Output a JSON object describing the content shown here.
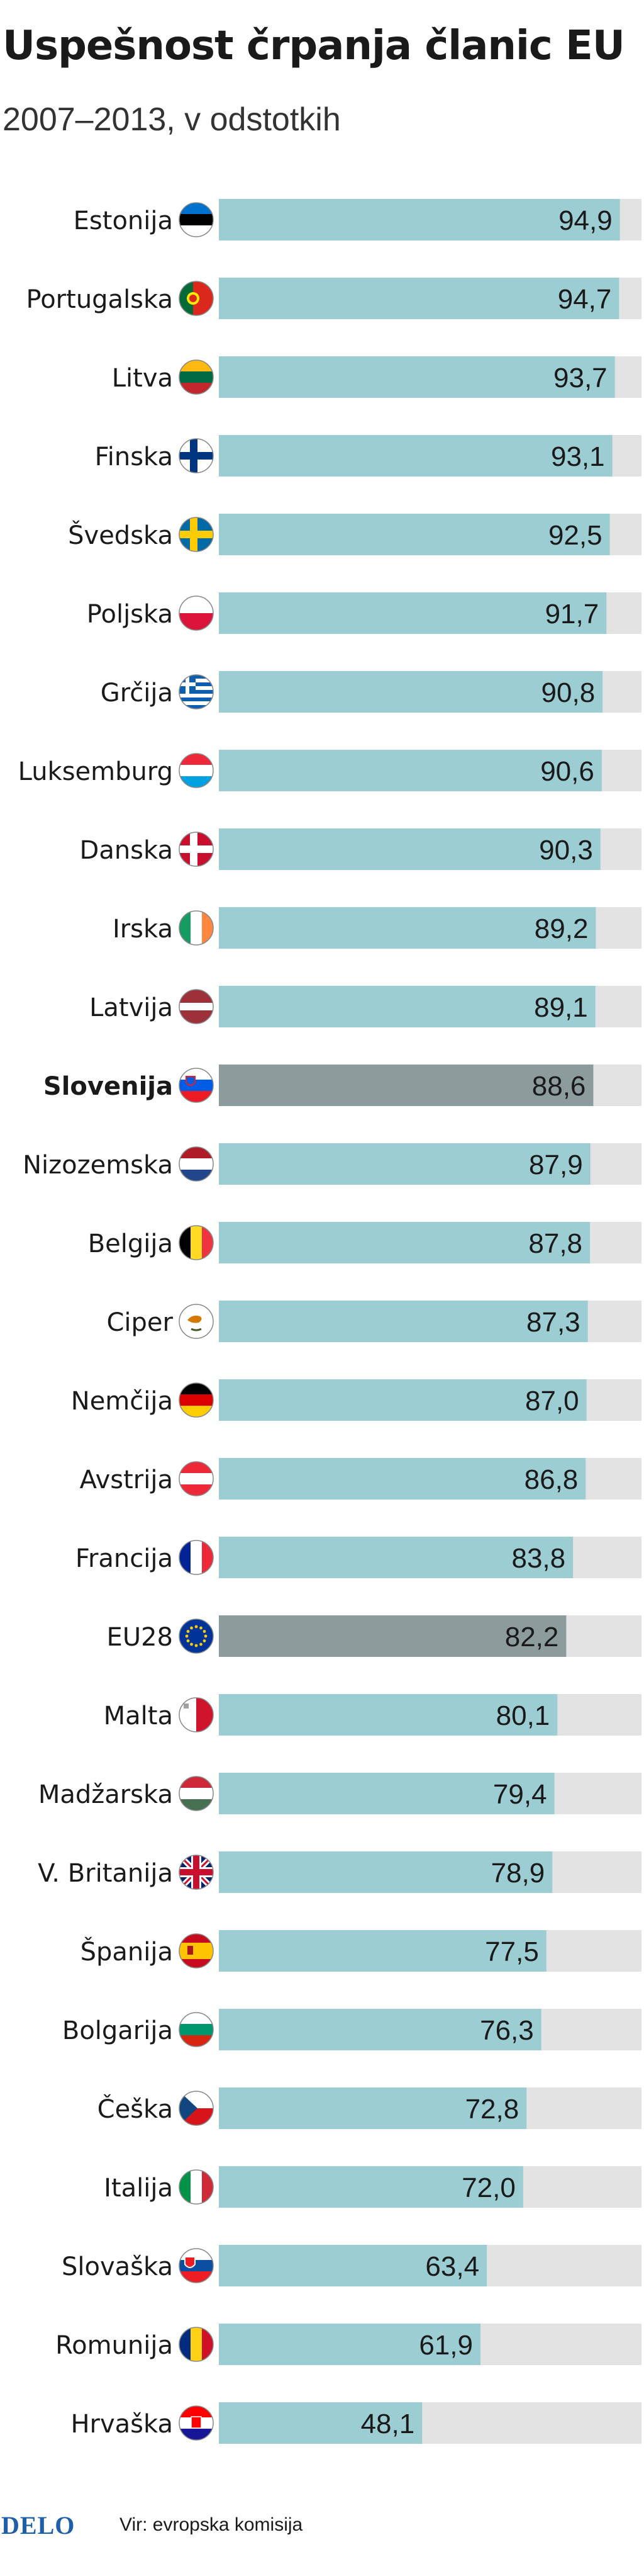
{
  "title": "Uspešnost črpanja članic EU",
  "subtitle": "2007–2013, v odstotkih",
  "footer": {
    "brand": "DELO",
    "source": "Vir: evropska komisija"
  },
  "colors": {
    "bar": "#9ccdd3",
    "bar_highlight": "#8c9b9c",
    "track": "#e3e3e3",
    "text": "#1a1a1a"
  },
  "highlighted": [
    "Slovenija",
    "EU28"
  ],
  "flags": {
    "Estonija": "flag-estonia-icon",
    "Portugalska": "flag-portugal-icon",
    "Litva": "flag-lithuania-icon",
    "Finska": "flag-finland-icon",
    "Švedska": "flag-sweden-icon",
    "Poljska": "flag-poland-icon",
    "Grčija": "flag-greece-icon",
    "Luksemburg": "flag-luxembourg-icon",
    "Danska": "flag-denmark-icon",
    "Irska": "flag-ireland-icon",
    "Latvija": "flag-latvia-icon",
    "Slovenija": "flag-slovenia-icon",
    "Nizozemska": "flag-netherlands-icon",
    "Belgija": "flag-belgium-icon",
    "Ciper": "flag-cyprus-icon",
    "Nemčija": "flag-germany-icon",
    "Avstrija": "flag-austria-icon",
    "Francija": "flag-france-icon",
    "EU28": "flag-eu-icon",
    "Malta": "flag-malta-icon",
    "Madžarska": "flag-hungary-icon",
    "V. Britanija": "flag-uk-icon",
    "Španija": "flag-spain-icon",
    "Bolgarija": "flag-bulgaria-icon",
    "Češka": "flag-czechia-icon",
    "Italija": "flag-italy-icon",
    "Slovaška": "flag-slovakia-icon",
    "Romunija": "flag-romania-icon",
    "Hrvaška": "flag-croatia-icon"
  },
  "chart_data": {
    "type": "bar",
    "orientation": "horizontal",
    "title": "Uspešnost črpanja članic EU",
    "subtitle": "2007–2013, v odstotkih",
    "xlim": [
      0,
      100
    ],
    "grid": false,
    "categories": [
      "Estonija",
      "Portugalska",
      "Litva",
      "Finska",
      "Švedska",
      "Poljska",
      "Grčija",
      "Luksemburg",
      "Danska",
      "Irska",
      "Latvija",
      "Slovenija",
      "Nizozemska",
      "Belgija",
      "Ciper",
      "Nemčija",
      "Avstrija",
      "Francija",
      "EU28",
      "Malta",
      "Madžarska",
      "V. Britanija",
      "Španija",
      "Bolgarija",
      "Češka",
      "Italija",
      "Slovaška",
      "Romunija",
      "Hrvaška"
    ],
    "values": [
      94.9,
      94.7,
      93.7,
      93.1,
      92.5,
      91.7,
      90.8,
      90.6,
      90.3,
      89.2,
      89.1,
      88.6,
      87.9,
      87.8,
      87.3,
      87.0,
      86.8,
      83.8,
      82.2,
      80.1,
      79.4,
      78.9,
      77.5,
      76.3,
      72.8,
      72.0,
      63.4,
      61.9,
      48.1
    ],
    "value_labels": [
      "94,9",
      "94,7",
      "93,7",
      "93,1",
      "92,5",
      "91,7",
      "90,8",
      "90,6",
      "90,3",
      "89,2",
      "89,1",
      "88,6",
      "87,9",
      "87,8",
      "87,3",
      "87,0",
      "86,8",
      "83,8",
      "82,2",
      "80,1",
      "79,4",
      "78,9",
      "77,5",
      "76,3",
      "72,8",
      "72,0",
      "63,4",
      "61,9",
      "48,1"
    ]
  }
}
